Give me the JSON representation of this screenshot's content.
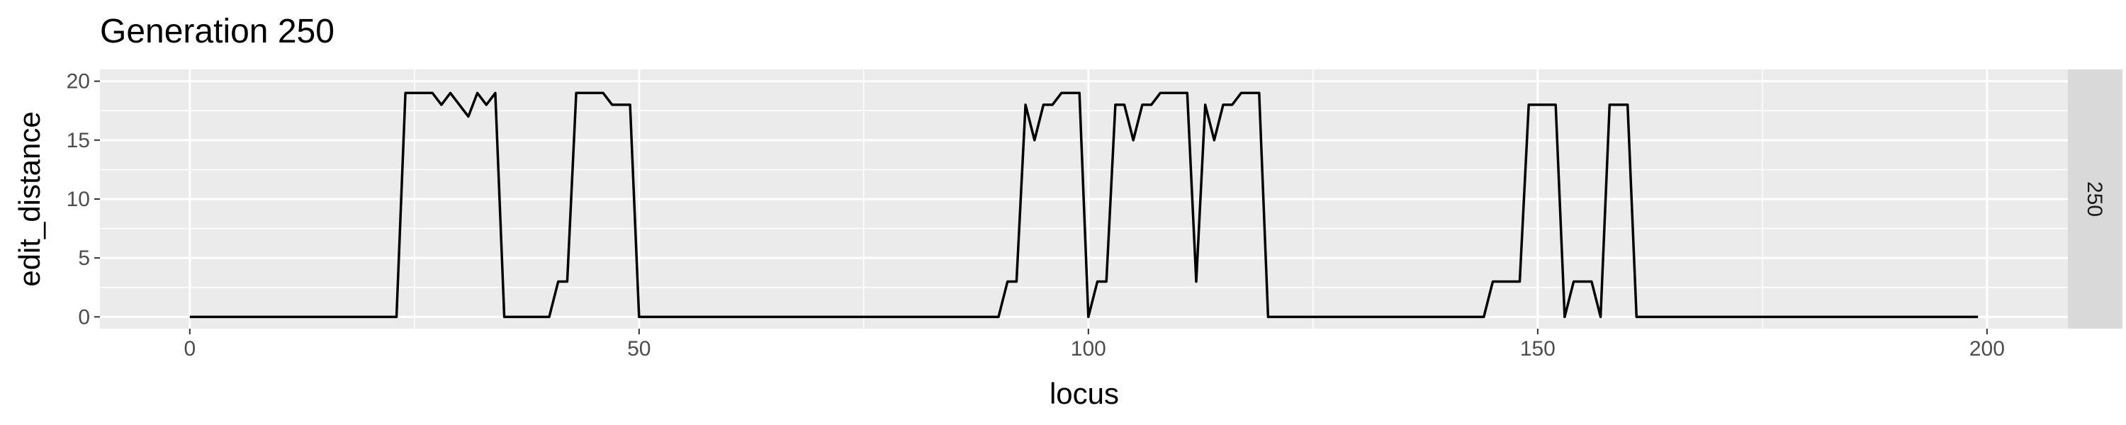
{
  "chart_data": {
    "type": "line",
    "title": "Generation 250",
    "xlabel": "locus",
    "ylabel": "edit_distance",
    "facet_label": "250",
    "xlim": [
      -10,
      209
    ],
    "ylim": [
      -1,
      21
    ],
    "x_ticks": [
      0,
      50,
      100,
      150,
      200
    ],
    "y_ticks": [
      0,
      5,
      10,
      15,
      20
    ],
    "grid": true,
    "colors": {
      "panel": "#ebebeb",
      "grid": "#ffffff",
      "strip": "#d9d9d9",
      "line": "#000000",
      "tick_text": "#4d4d4d"
    },
    "series": [
      {
        "points": [
          [
            0,
            0
          ],
          [
            23,
            0
          ],
          [
            24,
            19
          ],
          [
            27,
            19
          ],
          [
            28,
            18
          ],
          [
            29,
            19
          ],
          [
            31,
            17
          ],
          [
            32,
            19
          ],
          [
            33,
            18
          ],
          [
            34,
            19
          ],
          [
            35,
            0
          ],
          [
            40,
            0
          ],
          [
            41,
            3
          ],
          [
            42,
            3
          ],
          [
            43,
            19
          ],
          [
            46,
            19
          ],
          [
            47,
            18
          ],
          [
            49,
            18
          ],
          [
            50,
            0
          ],
          [
            90,
            0
          ],
          [
            91,
            3
          ],
          [
            92,
            3
          ],
          [
            93,
            18
          ],
          [
            94,
            15
          ],
          [
            95,
            18
          ],
          [
            96,
            18
          ],
          [
            97,
            19
          ],
          [
            99,
            19
          ],
          [
            100,
            0
          ],
          [
            101,
            3
          ],
          [
            102,
            3
          ],
          [
            103,
            18
          ],
          [
            104,
            18
          ],
          [
            105,
            15
          ],
          [
            106,
            18
          ],
          [
            107,
            18
          ],
          [
            108,
            19
          ],
          [
            111,
            19
          ],
          [
            112,
            3
          ],
          [
            113,
            18
          ],
          [
            114,
            15
          ],
          [
            115,
            18
          ],
          [
            116,
            18
          ],
          [
            117,
            19
          ],
          [
            119,
            19
          ],
          [
            120,
            0
          ],
          [
            144,
            0
          ],
          [
            145,
            3
          ],
          [
            148,
            3
          ],
          [
            149,
            18
          ],
          [
            152,
            18
          ],
          [
            153,
            0
          ],
          [
            154,
            3
          ],
          [
            156,
            3
          ],
          [
            157,
            0
          ],
          [
            158,
            18
          ],
          [
            160,
            18
          ],
          [
            161,
            0
          ],
          [
            199,
            0
          ]
        ]
      }
    ]
  }
}
